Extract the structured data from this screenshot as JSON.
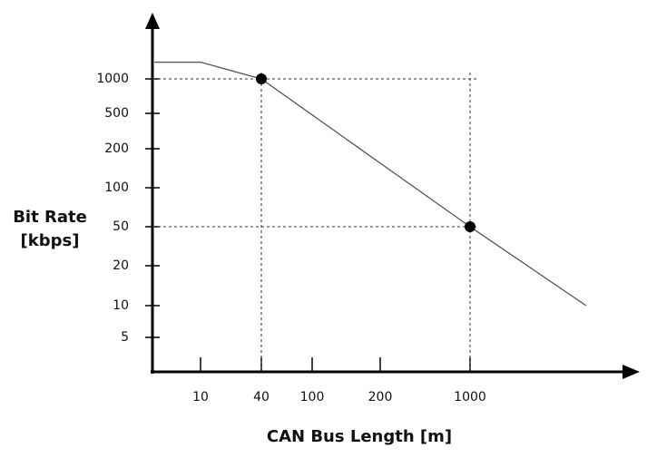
{
  "chart_data": {
    "type": "line",
    "x_label": "CAN Bus Length [m]",
    "y_label": [
      "Bit Rate",
      "[kbps]"
    ],
    "xscale": "log",
    "yscale": "log",
    "xticks": [
      10,
      40,
      100,
      200,
      1000
    ],
    "yticks": [
      1000,
      500,
      200,
      100,
      50,
      20,
      10,
      5
    ],
    "series": [
      {
        "x": [
          3.5,
          10,
          40,
          1000,
          8000
        ],
        "values": [
          1400,
          1400,
          1000,
          50,
          10
        ],
        "color": "#555555"
      }
    ],
    "points": {
      "x": [
        40,
        1000
      ],
      "values": [
        1000,
        50
      ],
      "color": "#000000"
    },
    "reference_x": [
      40,
      1000
    ],
    "reference_y": [
      1000,
      50
    ]
  }
}
